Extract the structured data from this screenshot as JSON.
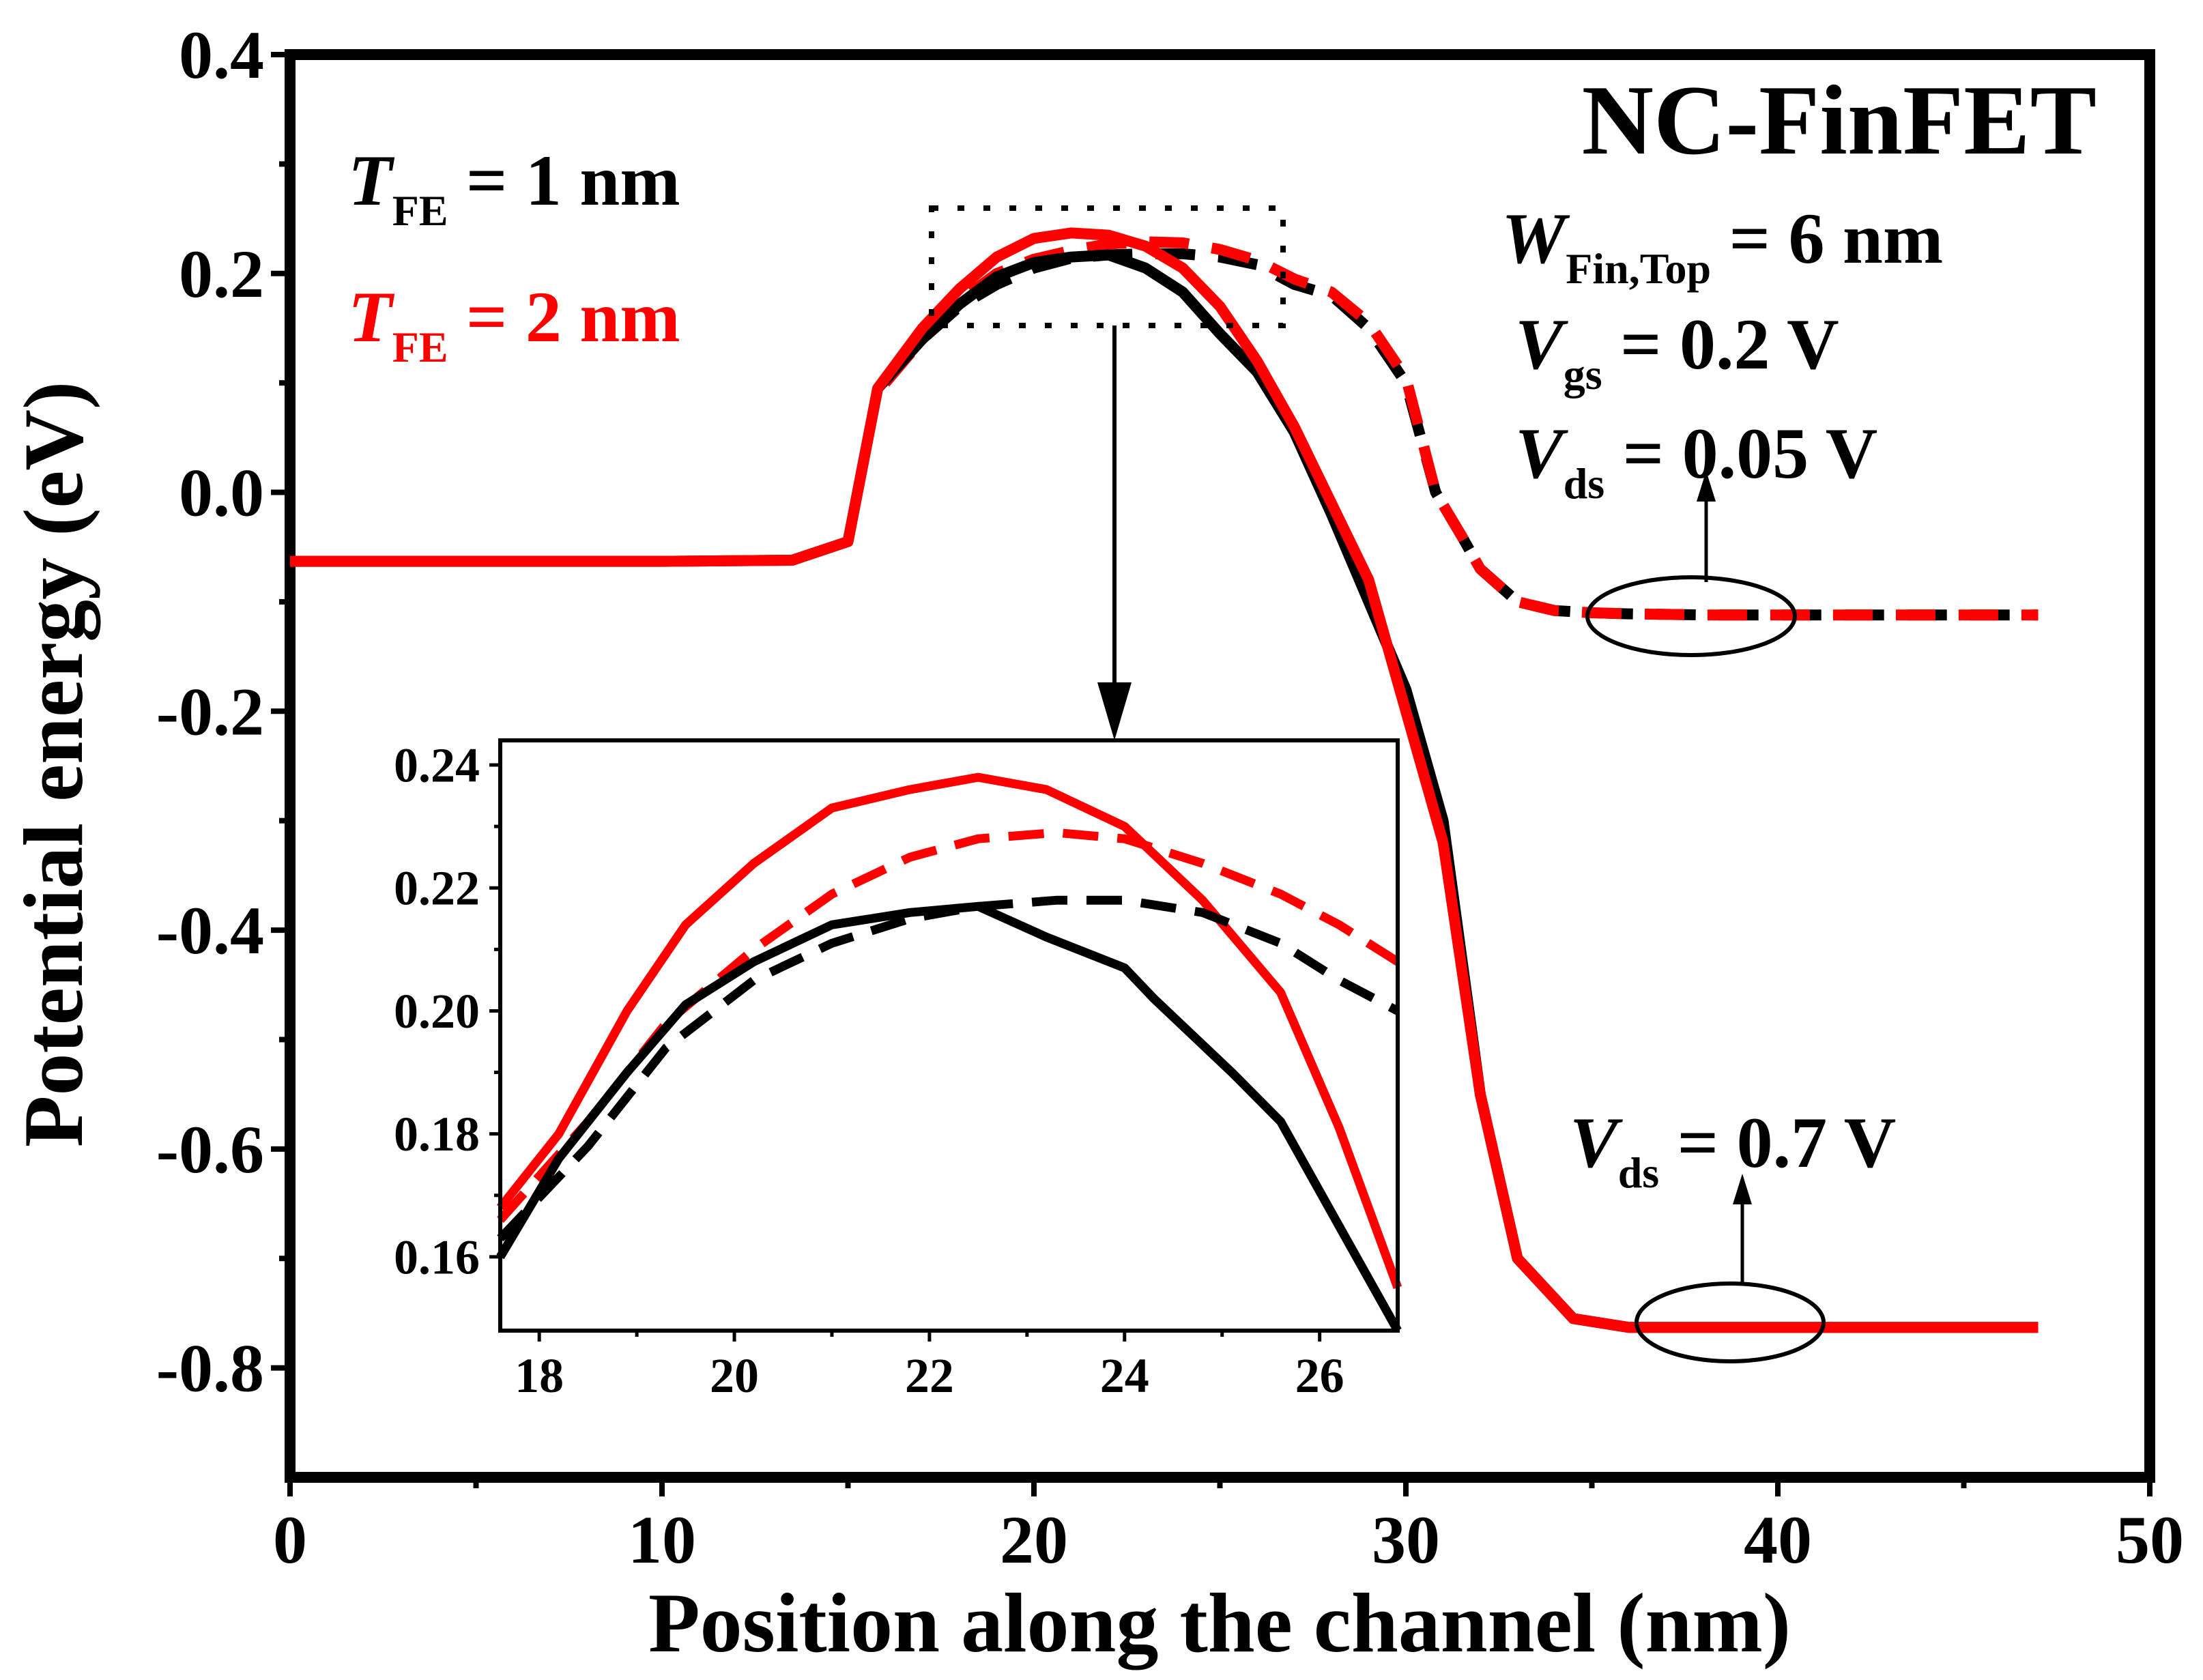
{
  "colors": {
    "t1": "#000000",
    "t2": "#ff0000"
  },
  "chart_data": [
    {
      "id": "main",
      "type": "line",
      "xlabel": "Position along the channel (nm)",
      "ylabel": "Potential energy (eV)",
      "xlim": [
        0,
        50
      ],
      "ylim": [
        -0.9,
        0.4
      ],
      "xticks": [
        "0",
        "10",
        "20",
        "30",
        "40",
        "50"
      ],
      "yticks": [
        "-0.8",
        "-0.6",
        "-0.4",
        "-0.2",
        "0.0",
        "0.2",
        "0.4"
      ],
      "grid": false,
      "series": [
        {
          "name": "T_FE = 1 nm, Vds = 0.05 V",
          "color": "#000000",
          "dash": true,
          "x": [
            16,
            17,
            18,
            19,
            20,
            21,
            22,
            23,
            24,
            25,
            26,
            27,
            28,
            29,
            30,
            30.8,
            31.5,
            32,
            33,
            34,
            35,
            36,
            38,
            40,
            45,
            47
          ],
          "y": [
            0.1,
            0.14,
            0.17,
            0.19,
            0.205,
            0.214,
            0.217,
            0.218,
            0.218,
            0.215,
            0.208,
            0.19,
            0.18,
            0.15,
            0.1,
            0.0,
            -0.04,
            -0.07,
            -0.1,
            -0.108,
            -0.11,
            -0.111,
            -0.112,
            -0.112,
            -0.112,
            -0.112
          ]
        },
        {
          "name": "T_FE = 2 nm, Vds = 0.05 V",
          "color": "#ff0000",
          "dash": true,
          "x": [
            16,
            17,
            18,
            19,
            20,
            21,
            22,
            23,
            24,
            25,
            26,
            27,
            28,
            29,
            30,
            30.8,
            31.5,
            32,
            33,
            34,
            35,
            36,
            38,
            40,
            45,
            47
          ],
          "y": [
            0.1,
            0.14,
            0.175,
            0.2,
            0.213,
            0.221,
            0.227,
            0.229,
            0.228,
            0.222,
            0.212,
            0.195,
            0.183,
            0.155,
            0.105,
            0.0,
            -0.04,
            -0.07,
            -0.1,
            -0.108,
            -0.11,
            -0.111,
            -0.112,
            -0.112,
            -0.112,
            -0.112
          ]
        },
        {
          "name": "T_FE = 1 nm, Vds = 0.7 V",
          "color": "#000000",
          "dash": false,
          "x": [
            0,
            5,
            10,
            13.5,
            15,
            15.8,
            17,
            18,
            19,
            20,
            21,
            22,
            23,
            24,
            25,
            26,
            27,
            28,
            29,
            30,
            31,
            32,
            33,
            34.5,
            36,
            40,
            47
          ],
          "y": [
            -0.063,
            -0.063,
            -0.063,
            -0.062,
            -0.045,
            0.095,
            0.14,
            0.172,
            0.197,
            0.21,
            0.215,
            0.217,
            0.205,
            0.183,
            0.145,
            0.11,
            0.055,
            -0.02,
            -0.1,
            -0.18,
            -0.3,
            -0.55,
            -0.7,
            -0.755,
            -0.763,
            -0.763,
            -0.763
          ]
        },
        {
          "name": "T_FE = 2 nm, Vds = 0.7 V",
          "color": "#ff0000",
          "dash": false,
          "x": [
            0,
            5,
            10,
            13.5,
            15,
            15.8,
            17,
            18,
            19,
            20,
            21,
            22,
            23,
            24,
            25,
            26,
            27,
            28,
            29,
            30,
            31,
            32,
            33,
            34.5,
            36,
            40,
            47
          ],
          "y": [
            -0.063,
            -0.063,
            -0.063,
            -0.062,
            -0.045,
            0.095,
            0.15,
            0.186,
            0.215,
            0.232,
            0.237,
            0.235,
            0.225,
            0.205,
            0.17,
            0.12,
            0.06,
            -0.01,
            -0.08,
            -0.2,
            -0.32,
            -0.55,
            -0.7,
            -0.755,
            -0.763,
            -0.763,
            -0.763
          ]
        }
      ]
    },
    {
      "id": "inset",
      "type": "line",
      "xlim": [
        17.6,
        26.8
      ],
      "ylim": [
        0.148,
        0.244
      ],
      "xticks": [
        "18",
        "20",
        "22",
        "24",
        "26"
      ],
      "yticks": [
        "0.16",
        "0.18",
        "0.20",
        "0.22",
        "0.24"
      ],
      "series": [
        {
          "name": "T_FE = 2 nm, Vds = 0.7 V",
          "color": "#ff0000",
          "dash": false,
          "x": [
            17.6,
            18.2,
            18.9,
            19.5,
            20.2,
            21,
            21.8,
            22.5,
            23.2,
            24,
            24.8,
            25.6,
            26.2,
            26.8
          ],
          "y": [
            0.168,
            0.18,
            0.2,
            0.214,
            0.224,
            0.233,
            0.236,
            0.238,
            0.236,
            0.23,
            0.218,
            0.203,
            0.181,
            0.155
          ]
        },
        {
          "name": "T_FE = 2 nm, Vds = 0.05 V",
          "color": "#ff0000",
          "dash": true,
          "x": [
            17.6,
            18.5,
            19.3,
            20.2,
            21,
            21.8,
            22.5,
            23.3,
            24,
            24.8,
            25.6,
            26.2,
            26.8
          ],
          "y": [
            0.166,
            0.182,
            0.198,
            0.21,
            0.219,
            0.225,
            0.228,
            0.229,
            0.228,
            0.224,
            0.219,
            0.214,
            0.208
          ]
        },
        {
          "name": "T_FE = 1 nm, Vds = 0.05 V",
          "color": "#000000",
          "dash": true,
          "x": [
            17.6,
            18.5,
            19.3,
            20.2,
            21,
            21.8,
            22.5,
            23.3,
            24,
            24.8,
            25.6,
            26.2,
            26.8
          ],
          "y": [
            0.163,
            0.178,
            0.194,
            0.205,
            0.211,
            0.215,
            0.217,
            0.218,
            0.218,
            0.216,
            0.211,
            0.205,
            0.2
          ]
        },
        {
          "name": "T_FE = 1 nm, Vds = 0.7 V",
          "color": "#000000",
          "dash": false,
          "x": [
            17.6,
            18.2,
            18.9,
            19.5,
            20.2,
            21,
            21.8,
            22.5,
            23.2,
            24,
            24.3,
            25.1,
            25.6,
            26.2,
            26.8
          ],
          "y": [
            0.16,
            0.176,
            0.19,
            0.201,
            0.208,
            0.214,
            0.216,
            0.217,
            0.212,
            0.207,
            0.202,
            0.19,
            0.182,
            0.165,
            0.148
          ]
        }
      ]
    }
  ],
  "annotations": {
    "title": "NC-FinFET",
    "t1_sym": "T",
    "t1_sub": "FE",
    "t1_rest": " = 1 nm",
    "t2_sym": "T",
    "t2_sub": "FE",
    "t2_rest": " = 2 nm",
    "w_sym": "W",
    "w_sub": "Fin,Top",
    "w_rest": " = 6 nm",
    "vgs_sym": "V",
    "vgs_sub": "gs",
    "vgs_rest": " = 0.2 V",
    "vds1_sym": "V",
    "vds1_sub": "ds",
    "vds1_rest": " = 0.05 V",
    "vds2_sym": "V",
    "vds2_sub": "ds",
    "vds2_rest": " = 0.7 V"
  }
}
